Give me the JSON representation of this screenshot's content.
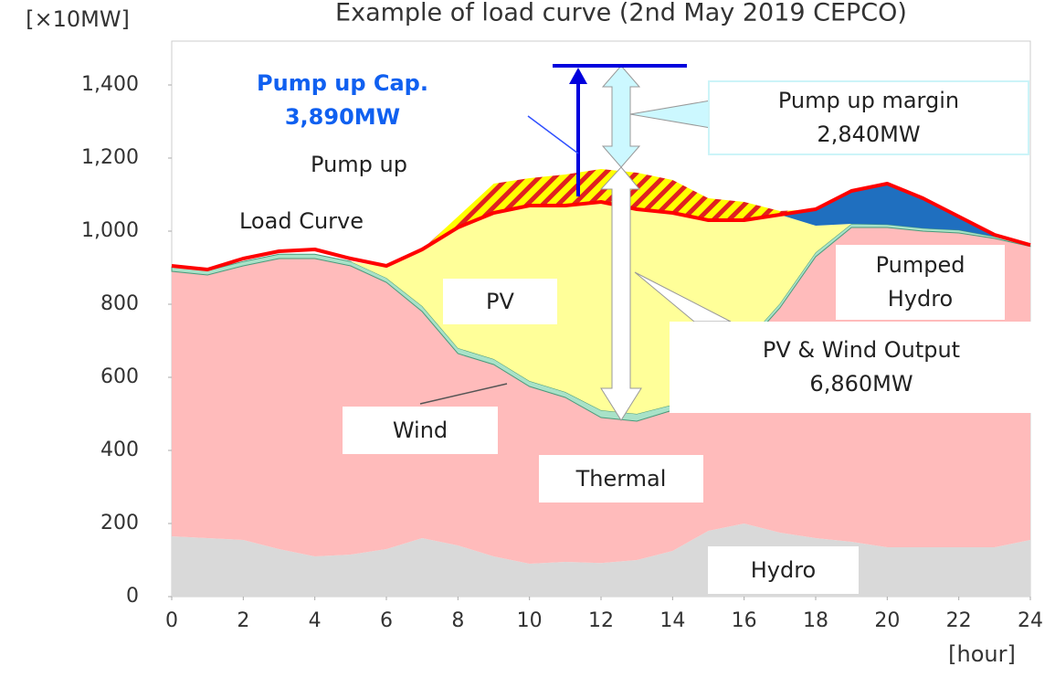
{
  "chart_data": {
    "type": "area",
    "stacked": true,
    "title": "Example of load curve (2nd May 2019 CEPCO)",
    "y_label": "[×10MW]",
    "x_label": "[hour]",
    "x": [
      0,
      1,
      2,
      3,
      4,
      5,
      6,
      7,
      8,
      9,
      10,
      11,
      12,
      13,
      14,
      15,
      16,
      17,
      18,
      19,
      20,
      21,
      22,
      23,
      24
    ],
    "xlim": [
      0,
      24
    ],
    "xticks": [
      0,
      2,
      4,
      6,
      8,
      10,
      12,
      14,
      16,
      18,
      20,
      22,
      24
    ],
    "ylim": [
      0,
      1520
    ],
    "yticks": [
      0,
      200,
      400,
      600,
      800,
      {
        "value": 1000,
        "label": "1,000"
      },
      {
        "value": 1200,
        "label": "1,200"
      },
      {
        "value": 1400,
        "label": "1,400"
      }
    ],
    "grid": false,
    "series": [
      {
        "name": "Hydro",
        "color": "#d9d9d9",
        "values": [
          165,
          160,
          155,
          130,
          110,
          115,
          130,
          160,
          140,
          110,
          90,
          95,
          92,
          100,
          125,
          180,
          200,
          175,
          160,
          150,
          135,
          135,
          135,
          135,
          155
        ]
      },
      {
        "name": "Thermal",
        "color": "#ffbbbb",
        "values": [
          725,
          720,
          750,
          795,
          815,
          790,
          730,
          620,
          525,
          525,
          485,
          450,
          398,
          380,
          385,
          380,
          480,
          615,
          770,
          860,
          875,
          865,
          860,
          845,
          803
        ]
      },
      {
        "name": "Wind",
        "color": "#a8e2c8",
        "values": [
          12,
          12,
          12,
          12,
          12,
          12,
          12,
          15,
          15,
          15,
          15,
          15,
          20,
          20,
          15,
          15,
          12,
          12,
          12,
          10,
          8,
          8,
          8,
          5,
          2
        ]
      },
      {
        "name": "PV",
        "color": "#ffff99",
        "values": [
          0,
          0,
          0,
          0,
          0,
          0,
          30,
          155,
          330,
          400,
          480,
          510,
          570,
          560,
          525,
          455,
          338,
          243,
          73,
          0,
          0,
          0,
          0,
          0,
          0
        ]
      },
      {
        "name": "Pumped Hydro",
        "color": "#1f6fbf",
        "values": [
          0,
          0,
          0,
          0,
          0,
          0,
          0,
          0,
          0,
          0,
          0,
          0,
          0,
          0,
          0,
          0,
          0,
          0,
          45,
          90,
          112,
          82,
          37,
          5,
          0
        ]
      },
      {
        "name": "Pump up",
        "color": "#ffff00",
        "values": [
          0,
          0,
          0,
          0,
          0,
          0,
          0,
          0,
          30,
          80,
          75,
          85,
          90,
          100,
          90,
          60,
          50,
          10,
          0,
          0,
          0,
          0,
          0,
          0,
          0
        ]
      }
    ],
    "load": {
      "name": "Load Curve",
      "color": "#ff0000",
      "values": [
        905,
        895,
        925,
        945,
        950,
        925,
        905,
        950,
        1010,
        1050,
        1070,
        1070,
        1080,
        1060,
        1050,
        1030,
        1030,
        1045,
        1060,
        1110,
        1130,
        1090,
        1040,
        990,
        962
      ]
    },
    "annotations": [
      [
        "Pump up Cap.",
        "3,890MW"
      ],
      [
        "Pump up margin",
        "2,840MW"
      ],
      [
        "PV & Wind Output",
        "6,860MW"
      ]
    ]
  }
}
